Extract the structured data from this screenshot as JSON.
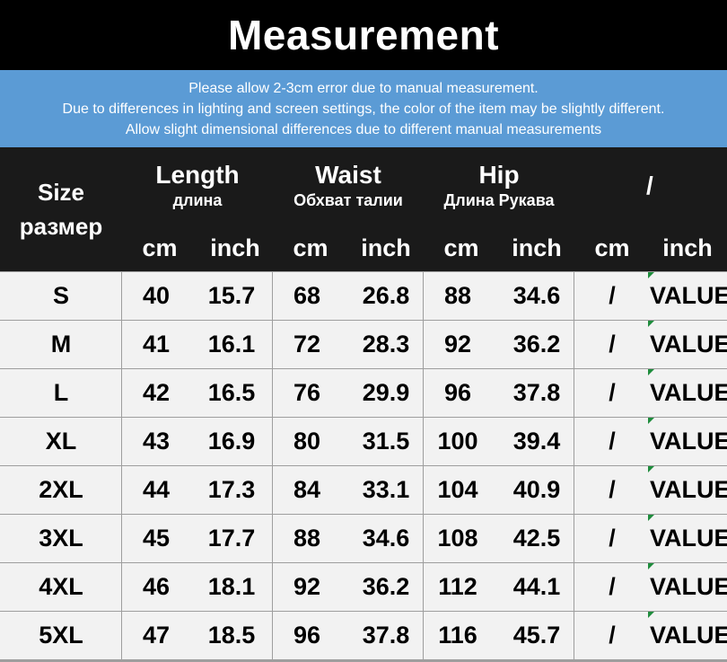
{
  "title": "Measurement",
  "notice": [
    "Please allow 2-3cm error due to manual measurement.",
    "Due to differences in lighting and screen settings, the color of the item may be slightly different.",
    "Allow slight dimensional differences due to different manual measurements"
  ],
  "header": {
    "size_en": "Size",
    "size_ru": "размер",
    "groups": [
      {
        "en": "Length",
        "ru": "длина"
      },
      {
        "en": "Waist",
        "ru": "Обхват талии"
      },
      {
        "en": "Hip",
        "ru": "Длина Рукава"
      },
      {
        "en": "/",
        "ru": ""
      }
    ],
    "unit_cm": "cm",
    "unit_inch": "inch"
  },
  "rows": [
    {
      "size": "S",
      "length_cm": "40",
      "length_inch": "15.7",
      "waist_cm": "68",
      "waist_inch": "26.8",
      "hip_cm": "88",
      "hip_inch": "34.6",
      "extra_cm": "/",
      "extra_inch": "VALUE"
    },
    {
      "size": "M",
      "length_cm": "41",
      "length_inch": "16.1",
      "waist_cm": "72",
      "waist_inch": "28.3",
      "hip_cm": "92",
      "hip_inch": "36.2",
      "extra_cm": "/",
      "extra_inch": "VALUE"
    },
    {
      "size": "L",
      "length_cm": "42",
      "length_inch": "16.5",
      "waist_cm": "76",
      "waist_inch": "29.9",
      "hip_cm": "96",
      "hip_inch": "37.8",
      "extra_cm": "/",
      "extra_inch": "VALUE"
    },
    {
      "size": "XL",
      "length_cm": "43",
      "length_inch": "16.9",
      "waist_cm": "80",
      "waist_inch": "31.5",
      "hip_cm": "100",
      "hip_inch": "39.4",
      "extra_cm": "/",
      "extra_inch": "VALUE"
    },
    {
      "size": "2XL",
      "length_cm": "44",
      "length_inch": "17.3",
      "waist_cm": "84",
      "waist_inch": "33.1",
      "hip_cm": "104",
      "hip_inch": "40.9",
      "extra_cm": "/",
      "extra_inch": "VALUE"
    },
    {
      "size": "3XL",
      "length_cm": "45",
      "length_inch": "17.7",
      "waist_cm": "88",
      "waist_inch": "34.6",
      "hip_cm": "108",
      "hip_inch": "42.5",
      "extra_cm": "/",
      "extra_inch": "VALUE"
    },
    {
      "size": "4XL",
      "length_cm": "46",
      "length_inch": "18.1",
      "waist_cm": "92",
      "waist_inch": "36.2",
      "hip_cm": "112",
      "hip_inch": "44.1",
      "extra_cm": "/",
      "extra_inch": "VALUE"
    },
    {
      "size": "5XL",
      "length_cm": "47",
      "length_inch": "18.5",
      "waist_cm": "96",
      "waist_inch": "37.8",
      "hip_cm": "116",
      "hip_inch": "45.7",
      "extra_cm": "/",
      "extra_inch": "VALUE"
    }
  ],
  "colors": {
    "title_bg": "#000000",
    "notice_bg": "#5b9bd5",
    "header_bg": "#1a1a1a",
    "row_bg": "#f2f2f2",
    "grid": "#9e9e9e",
    "cell_marker": "#1e8c3c"
  }
}
